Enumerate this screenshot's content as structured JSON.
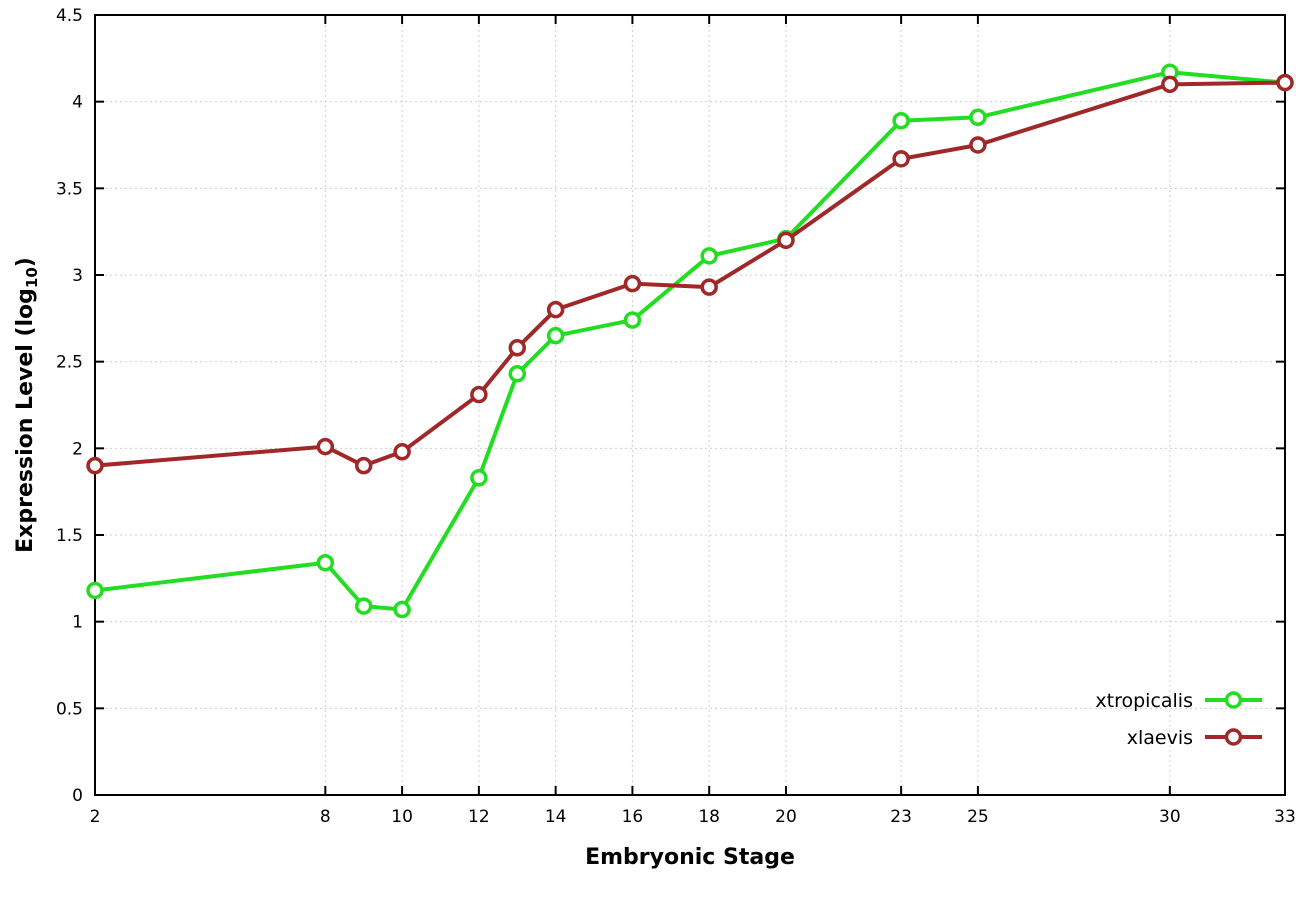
{
  "chart_data": {
    "type": "line",
    "x": [
      2,
      8,
      9,
      10,
      12,
      13,
      14,
      16,
      18,
      20,
      23,
      25,
      30,
      33
    ],
    "series": [
      {
        "name": "xtropicalis",
        "color": "#22dd22",
        "marker": "open-circle",
        "values": [
          1.18,
          1.34,
          1.09,
          1.07,
          1.83,
          2.43,
          2.65,
          2.74,
          3.11,
          3.21,
          3.89,
          3.91,
          4.17,
          4.11
        ]
      },
      {
        "name": "xlaevis",
        "color": "#a02828",
        "marker": "open-circle",
        "values": [
          1.9,
          2.01,
          1.9,
          1.98,
          2.31,
          2.58,
          2.8,
          2.95,
          2.93,
          3.2,
          3.67,
          3.75,
          4.1,
          4.11
        ]
      }
    ],
    "title": "",
    "xlabel": "Embryonic Stage",
    "ylabel": "Expression Level (log10)",
    "ylabel_rich": {
      "prefix": "Expression Level (log",
      "sub": "10",
      "suffix": ")"
    },
    "xlim": [
      2,
      33
    ],
    "ylim": [
      0,
      4.5
    ],
    "xticks": [
      2,
      8,
      10,
      12,
      14,
      16,
      18,
      20,
      23,
      25,
      30,
      33
    ],
    "yticks": [
      0,
      0.5,
      1,
      1.5,
      2,
      2.5,
      3,
      3.5,
      4,
      4.5
    ],
    "grid": true,
    "legend_position": "bottom-right",
    "background": "#ffffff"
  }
}
